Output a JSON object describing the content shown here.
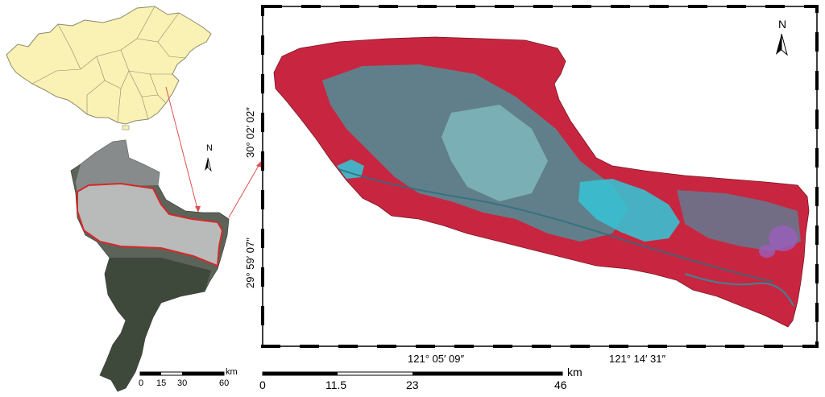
{
  "inset_china": {
    "fill": "#FAF1B4",
    "stroke": "#8A8A6A"
  },
  "overview_map": {
    "north_label": "N",
    "scale": {
      "ticks": [
        "0",
        "15",
        "30",
        "60"
      ],
      "unit": "km"
    },
    "highlight_color": "#D42A2A"
  },
  "main_map": {
    "north_label": "N",
    "lat_labels": [
      "30° 02′ 02″",
      "29° 59′ 07″"
    ],
    "lon_labels": [
      "121° 05′ 09″",
      "121° 14′ 31″"
    ],
    "scale": {
      "ticks": [
        "0",
        "11.5",
        "23",
        "46"
      ],
      "unit": "km"
    },
    "colors": {
      "vegetation": "#D0243E",
      "water": "#34B8CC",
      "urban": "#6FA0A8"
    }
  },
  "connector_color": "#E05050"
}
